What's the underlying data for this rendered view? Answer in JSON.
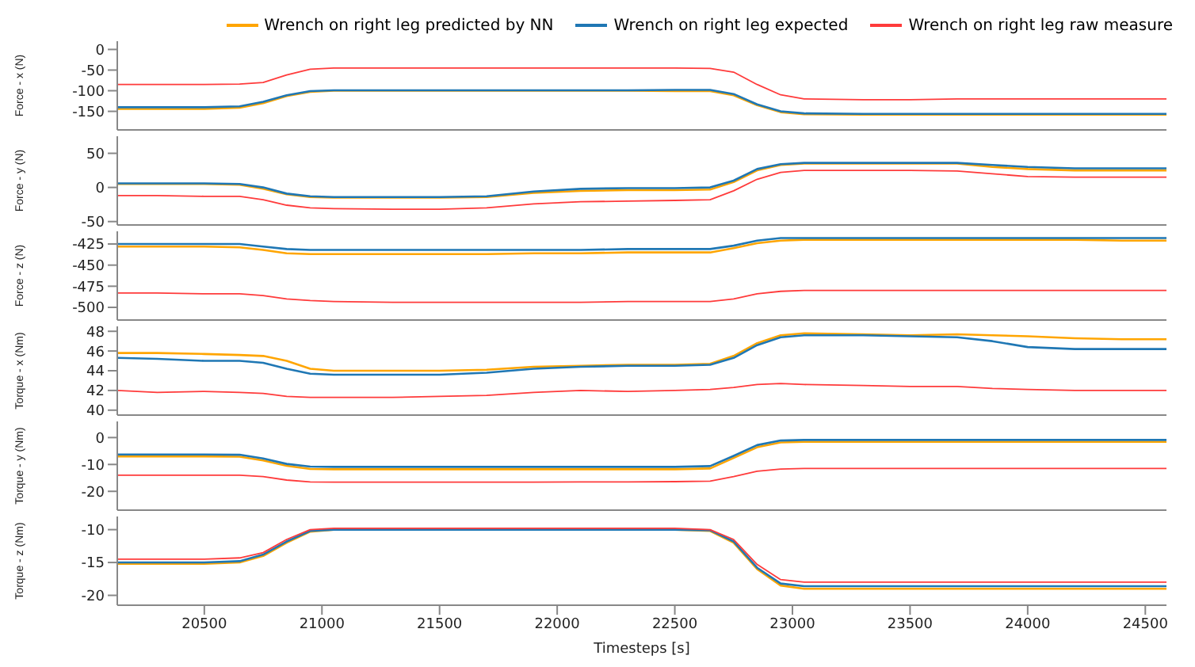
{
  "chart_data": [
    {
      "type": "line",
      "ylabel": "Force - x (N)",
      "xlim": [
        20130,
        24590
      ],
      "xticks": [
        20500,
        21000,
        21500,
        22000,
        22500,
        23000,
        23500,
        24000,
        24500
      ],
      "ylim": [
        -195,
        20
      ],
      "yticks": [
        0,
        -50,
        -100,
        -150
      ],
      "tick_labels": "y",
      "legend": "top right",
      "x": [
        20130,
        20300,
        20500,
        20650,
        20750,
        20850,
        20950,
        21050,
        21300,
        21500,
        21700,
        21900,
        22100,
        22300,
        22500,
        22650,
        22750,
        22850,
        22950,
        23050,
        23300,
        23500,
        23700,
        23850,
        24000,
        24200,
        24400,
        24590
      ],
      "series": [
        {
          "name": "Wrench on right leg predicted by NN",
          "color": "#ffa500",
          "values": [
            -144,
            -144,
            -144,
            -141,
            -130,
            -113,
            -103,
            -100,
            -100,
            -100,
            -100,
            -100,
            -100,
            -100,
            -101,
            -101,
            -111,
            -135,
            -152,
            -157,
            -158,
            -158,
            -158,
            -158,
            -158,
            -158,
            -158,
            -158
          ]
        },
        {
          "name": "Wrench on right leg expected",
          "color": "#1f77b4",
          "values": [
            -140,
            -140,
            -140,
            -138,
            -127,
            -111,
            -101,
            -99,
            -99,
            -99,
            -99,
            -99,
            -99,
            -99,
            -98,
            -98,
            -108,
            -133,
            -150,
            -155,
            -156,
            -156,
            -156,
            -156,
            -156,
            -156,
            -156,
            -156
          ]
        },
        {
          "name": "Wrench on right leg raw measure",
          "color": "#ff3b3b",
          "values": [
            -85,
            -85,
            -85,
            -84,
            -80,
            -62,
            -48,
            -45,
            -45,
            -45,
            -45,
            -45,
            -45,
            -45,
            -45,
            -46,
            -55,
            -85,
            -110,
            -120,
            -122,
            -122,
            -120,
            -120,
            -120,
            -120,
            -120,
            -120
          ]
        }
      ]
    },
    {
      "type": "line",
      "ylabel": "Force - y (N)",
      "xlim": [
        20130,
        24590
      ],
      "xticks": [
        20500,
        21000,
        21500,
        22000,
        22500,
        23000,
        23500,
        24000,
        24500
      ],
      "ylim": [
        -55,
        75
      ],
      "yticks": [
        50,
        0,
        -50
      ],
      "tick_labels": "y",
      "x": [
        20130,
        20300,
        20500,
        20650,
        20750,
        20850,
        20950,
        21050,
        21300,
        21500,
        21700,
        21900,
        22100,
        22300,
        22500,
        22650,
        22750,
        22850,
        22950,
        23050,
        23300,
        23500,
        23700,
        23850,
        24000,
        24200,
        24400,
        24590
      ],
      "series": [
        {
          "color": "#ffa500",
          "values": [
            5,
            5,
            5,
            4,
            -2,
            -10,
            -14,
            -15,
            -15,
            -15,
            -14,
            -8,
            -5,
            -4,
            -4,
            -3,
            8,
            25,
            33,
            35,
            35,
            35,
            35,
            30,
            27,
            25,
            25,
            25
          ]
        },
        {
          "color": "#1f77b4",
          "values": [
            6,
            6,
            6,
            5,
            0,
            -9,
            -13,
            -14,
            -14,
            -14,
            -13,
            -6,
            -2,
            -1,
            -1,
            0,
            10,
            27,
            34,
            36,
            36,
            36,
            36,
            33,
            30,
            28,
            28,
            28
          ]
        },
        {
          "color": "#ff3b3b",
          "values": [
            -12,
            -12,
            -13,
            -13,
            -18,
            -26,
            -30,
            -31,
            -32,
            -32,
            -30,
            -24,
            -21,
            -20,
            -19,
            -18,
            -5,
            12,
            22,
            25,
            25,
            25,
            24,
            20,
            16,
            15,
            15,
            15
          ]
        }
      ]
    },
    {
      "type": "line",
      "ylabel": "Force - z (N)",
      "xlim": [
        20130,
        24590
      ],
      "xticks": [
        20500,
        21000,
        21500,
        22000,
        22500,
        23000,
        23500,
        24000,
        24500
      ],
      "ylim": [
        -515,
        -410
      ],
      "yticks": [
        -425,
        -450,
        -475,
        -500
      ],
      "tick_labels": "y",
      "x": [
        20130,
        20300,
        20500,
        20650,
        20750,
        20850,
        20950,
        21050,
        21300,
        21500,
        21700,
        21900,
        22100,
        22300,
        22500,
        22650,
        22750,
        22850,
        22950,
        23050,
        23300,
        23500,
        23700,
        23850,
        24000,
        24200,
        24400,
        24590
      ],
      "series": [
        {
          "color": "#ffa500",
          "values": [
            -428,
            -428,
            -428,
            -429,
            -432,
            -436,
            -437,
            -437,
            -437,
            -437,
            -437,
            -436,
            -436,
            -435,
            -435,
            -435,
            -430,
            -424,
            -421,
            -420,
            -420,
            -420,
            -420,
            -420,
            -420,
            -420,
            -421,
            -421
          ]
        },
        {
          "color": "#1f77b4",
          "values": [
            -425,
            -425,
            -425,
            -425,
            -428,
            -431,
            -432,
            -432,
            -432,
            -432,
            -432,
            -432,
            -432,
            -431,
            -431,
            -431,
            -427,
            -421,
            -418,
            -418,
            -418,
            -418,
            -418,
            -418,
            -418,
            -418,
            -418,
            -418
          ]
        },
        {
          "color": "#ff3b3b",
          "values": [
            -483,
            -483,
            -484,
            -484,
            -486,
            -490,
            -492,
            -493,
            -494,
            -494,
            -494,
            -494,
            -494,
            -493,
            -493,
            -493,
            -490,
            -484,
            -481,
            -480,
            -480,
            -480,
            -480,
            -480,
            -480,
            -480,
            -480,
            -480
          ]
        }
      ]
    },
    {
      "type": "line",
      "ylabel": "Torque - x (Nm)",
      "xlim": [
        20130,
        24590
      ],
      "xticks": [
        20500,
        21000,
        21500,
        22000,
        22500,
        23000,
        23500,
        24000,
        24500
      ],
      "ylim": [
        39.5,
        48.5
      ],
      "yticks": [
        40,
        42,
        44,
        46,
        48
      ],
      "tick_labels": "y",
      "x": [
        20130,
        20300,
        20500,
        20650,
        20750,
        20850,
        20950,
        21050,
        21300,
        21500,
        21700,
        21900,
        22100,
        22300,
        22500,
        22650,
        22750,
        22850,
        22950,
        23050,
        23300,
        23500,
        23700,
        23850,
        24000,
        24200,
        24400,
        24590
      ],
      "series": [
        {
          "color": "#ffa500",
          "values": [
            45.8,
            45.8,
            45.7,
            45.6,
            45.5,
            45,
            44.2,
            44,
            44,
            44,
            44.1,
            44.4,
            44.5,
            44.6,
            44.6,
            44.7,
            45.5,
            46.8,
            47.6,
            47.8,
            47.7,
            47.6,
            47.7,
            47.6,
            47.5,
            47.3,
            47.2,
            47.2
          ]
        },
        {
          "color": "#1f77b4",
          "values": [
            45.3,
            45.2,
            45,
            45,
            44.8,
            44.2,
            43.7,
            43.6,
            43.6,
            43.6,
            43.8,
            44.2,
            44.4,
            44.5,
            44.5,
            44.6,
            45.3,
            46.6,
            47.4,
            47.6,
            47.6,
            47.5,
            47.4,
            47,
            46.4,
            46.2,
            46.2,
            46.2
          ]
        },
        {
          "color": "#ff3b3b",
          "values": [
            42,
            41.8,
            41.9,
            41.8,
            41.7,
            41.4,
            41.3,
            41.3,
            41.3,
            41.4,
            41.5,
            41.8,
            42,
            41.9,
            42,
            42.1,
            42.3,
            42.6,
            42.7,
            42.6,
            42.5,
            42.4,
            42.4,
            42.2,
            42.1,
            42,
            42,
            42
          ]
        }
      ]
    },
    {
      "type": "line",
      "ylabel": "Torque - y (Nm)",
      "xlim": [
        20130,
        24590
      ],
      "xticks": [
        20500,
        21000,
        21500,
        22000,
        22500,
        23000,
        23500,
        24000,
        24500
      ],
      "ylim": [
        -27,
        6
      ],
      "yticks": [
        0,
        -10,
        -20
      ],
      "tick_labels": "y",
      "x": [
        20130,
        20300,
        20500,
        20650,
        20750,
        20850,
        20950,
        21050,
        21300,
        21500,
        21700,
        21900,
        22100,
        22300,
        22500,
        22650,
        22750,
        22850,
        22950,
        23050,
        23300,
        23500,
        23700,
        23850,
        24000,
        24200,
        24400,
        24590
      ],
      "series": [
        {
          "color": "#ffa500",
          "values": [
            -7,
            -7,
            -7,
            -7.1,
            -8.5,
            -10.5,
            -11.7,
            -11.8,
            -11.8,
            -11.8,
            -11.8,
            -11.8,
            -11.8,
            -11.8,
            -11.8,
            -11.5,
            -7.6,
            -3.6,
            -1.8,
            -1.6,
            -1.6,
            -1.6,
            -1.6,
            -1.6,
            -1.6,
            -1.6,
            -1.6,
            -1.6
          ]
        },
        {
          "color": "#1f77b4",
          "values": [
            -6.3,
            -6.3,
            -6.3,
            -6.4,
            -7.8,
            -9.8,
            -10.8,
            -10.9,
            -10.9,
            -10.9,
            -10.9,
            -10.9,
            -10.9,
            -10.9,
            -10.9,
            -10.6,
            -6.8,
            -2.8,
            -1.1,
            -0.9,
            -0.9,
            -0.9,
            -0.9,
            -0.9,
            -0.9,
            -0.9,
            -0.9,
            -0.9
          ]
        },
        {
          "color": "#ff3b3b",
          "values": [
            -14,
            -14,
            -14,
            -14,
            -14.5,
            -15.8,
            -16.5,
            -16.6,
            -16.6,
            -16.6,
            -16.6,
            -16.6,
            -16.5,
            -16.5,
            -16.4,
            -16.2,
            -14.5,
            -12.5,
            -11.7,
            -11.5,
            -11.5,
            -11.5,
            -11.5,
            -11.5,
            -11.5,
            -11.5,
            -11.5,
            -11.5
          ]
        }
      ]
    },
    {
      "type": "line",
      "ylabel": "Torque - z (Nm)",
      "xlabel": "Timesteps [s]",
      "xlim": [
        20130,
        24590
      ],
      "xticks": [
        20500,
        21000,
        21500,
        22000,
        22500,
        23000,
        23500,
        24000,
        24500
      ],
      "ylim": [
        -21.5,
        -8
      ],
      "yticks": [
        -10,
        -15,
        -20
      ],
      "x": [
        20130,
        20300,
        20500,
        20650,
        20750,
        20850,
        20950,
        21050,
        21300,
        21500,
        21700,
        21900,
        22100,
        22300,
        22500,
        22650,
        22750,
        22850,
        22950,
        23050,
        23300,
        23500,
        23700,
        23850,
        24000,
        24200,
        24400,
        24590
      ],
      "series": [
        {
          "color": "#ffa500",
          "values": [
            -15.2,
            -15.2,
            -15.2,
            -15,
            -14,
            -12,
            -10.3,
            -10,
            -10,
            -10,
            -10,
            -10,
            -10,
            -10,
            -10,
            -10.2,
            -12,
            -16,
            -18.5,
            -19,
            -19,
            -19,
            -19,
            -19,
            -19,
            -19,
            -19,
            -19
          ]
        },
        {
          "color": "#1f77b4",
          "values": [
            -15,
            -15,
            -15,
            -14.8,
            -13.8,
            -11.8,
            -10.2,
            -10,
            -10,
            -10,
            -10,
            -10,
            -10,
            -10,
            -10,
            -10.1,
            -11.8,
            -15.8,
            -18.2,
            -18.6,
            -18.6,
            -18.6,
            -18.6,
            -18.6,
            -18.6,
            -18.6,
            -18.6,
            -18.6
          ]
        },
        {
          "color": "#ff3b3b",
          "values": [
            -14.5,
            -14.5,
            -14.5,
            -14.3,
            -13.5,
            -11.5,
            -10,
            -9.8,
            -9.8,
            -9.8,
            -9.8,
            -9.8,
            -9.8,
            -9.8,
            -9.8,
            -10,
            -11.5,
            -15.3,
            -17.6,
            -18,
            -18,
            -18,
            -18,
            -18,
            -18,
            -18,
            -18,
            -18
          ]
        }
      ]
    }
  ]
}
